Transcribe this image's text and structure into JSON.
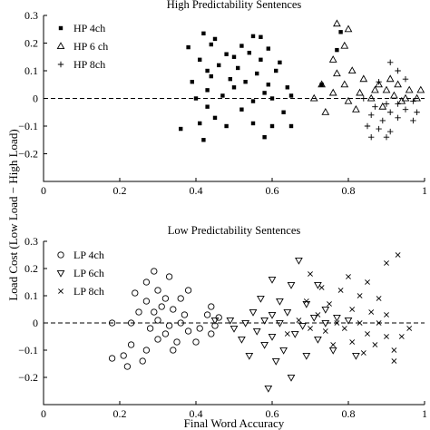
{
  "figure": {
    "ylabel": "Load Cost (Low Load − High Load)",
    "xlabel": "Final Word Accuracy"
  },
  "chart_data": [
    {
      "type": "scatter",
      "title": "High Predictability Sentences",
      "xlabel": "",
      "ylabel": "Load Cost (Low Load − High Load)",
      "xlim": [
        0,
        1
      ],
      "ylim": [
        -0.3,
        0.3
      ],
      "xticks": [
        "0",
        "0.2",
        "0.4",
        "0.6",
        "0.8",
        "1"
      ],
      "yticks": [
        "−0.2",
        "−0.1",
        "0",
        "0.1",
        "0.2",
        "0.3"
      ],
      "ytick_values": [
        -0.2,
        -0.1,
        0,
        0.1,
        0.2,
        0.3
      ],
      "xtick_values": [
        0,
        0.2,
        0.4,
        0.6,
        0.8,
        1
      ],
      "reference_line": {
        "y": 0,
        "style": "dashed"
      },
      "legend_position": "top-left",
      "series": [
        {
          "name": "HP 4ch",
          "marker": "filled-square",
          "points": [
            [
              0.42,
              0.235
            ],
            [
              0.45,
              0.215
            ],
            [
              0.55,
              0.225
            ],
            [
              0.57,
              0.222
            ],
            [
              0.38,
              0.185
            ],
            [
              0.44,
              0.195
            ],
            [
              0.52,
              0.19
            ],
            [
              0.59,
              0.18
            ],
            [
              0.48,
              0.16
            ],
            [
              0.54,
              0.165
            ],
            [
              0.41,
              0.14
            ],
            [
              0.5,
              0.15
            ],
            [
              0.57,
              0.14
            ],
            [
              0.46,
              0.12
            ],
            [
              0.62,
              0.13
            ],
            [
              0.43,
              0.1
            ],
            [
              0.51,
              0.11
            ],
            [
              0.56,
              0.09
            ],
            [
              0.61,
              0.1
            ],
            [
              0.39,
              0.06
            ],
            [
              0.44,
              0.08
            ],
            [
              0.49,
              0.07
            ],
            [
              0.53,
              0.06
            ],
            [
              0.59,
              0.05
            ],
            [
              0.64,
              0.04
            ],
            [
              0.43,
              0.03
            ],
            [
              0.5,
              0.04
            ],
            [
              0.58,
              0.02
            ],
            [
              0.65,
              0.01
            ],
            [
              0.4,
              0.0
            ],
            [
              0.47,
              0.01
            ],
            [
              0.55,
              -0.01
            ],
            [
              0.6,
              0.0
            ],
            [
              0.43,
              -0.03
            ],
            [
              0.52,
              -0.04
            ],
            [
              0.63,
              -0.05
            ],
            [
              0.45,
              -0.07
            ],
            [
              0.55,
              -0.09
            ],
            [
              0.41,
              -0.09
            ],
            [
              0.48,
              -0.1
            ],
            [
              0.6,
              -0.1
            ],
            [
              0.65,
              -0.1
            ],
            [
              0.36,
              -0.11
            ],
            [
              0.58,
              -0.14
            ],
            [
              0.42,
              -0.15
            ],
            [
              0.73,
              0.05
            ],
            [
              0.78,
              0.24
            ],
            [
              0.77,
              0.175
            ]
          ]
        },
        {
          "name": "HP 6 ch",
          "marker": "open-triangle-up",
          "points": [
            [
              0.77,
              0.27
            ],
            [
              0.8,
              0.25
            ],
            [
              0.79,
              0.19
            ],
            [
              0.76,
              0.14
            ],
            [
              0.81,
              0.1
            ],
            [
              0.77,
              0.09
            ],
            [
              0.73,
              0.05
            ],
            [
              0.79,
              0.05
            ],
            [
              0.84,
              0.07
            ],
            [
              0.88,
              0.05
            ],
            [
              0.91,
              0.07
            ],
            [
              0.76,
              0.02
            ],
            [
              0.83,
              0.02
            ],
            [
              0.87,
              0.03
            ],
            [
              0.9,
              0.03
            ],
            [
              0.93,
              0.05
            ],
            [
              0.96,
              0.03
            ],
            [
              0.99,
              0.03
            ],
            [
              0.71,
              0.0
            ],
            [
              0.8,
              -0.01
            ],
            [
              0.86,
              0.0
            ],
            [
              0.92,
              0.01
            ],
            [
              0.95,
              0.0
            ],
            [
              0.98,
              0.0
            ],
            [
              0.74,
              -0.05
            ],
            [
              0.82,
              -0.04
            ],
            [
              0.89,
              -0.03
            ],
            [
              0.94,
              -0.01
            ]
          ]
        },
        {
          "name": "HP 8ch",
          "marker": "plus",
          "points": [
            [
              0.91,
              0.13
            ],
            [
              0.93,
              0.1
            ],
            [
              0.95,
              0.07
            ],
            [
              0.88,
              0.06
            ],
            [
              0.84,
              0.0
            ],
            [
              0.9,
              -0.02
            ],
            [
              0.93,
              -0.02
            ],
            [
              0.97,
              -0.01
            ],
            [
              0.87,
              -0.03
            ],
            [
              0.91,
              -0.05
            ],
            [
              0.95,
              -0.04
            ],
            [
              0.98,
              -0.05
            ],
            [
              0.86,
              -0.06
            ],
            [
              0.89,
              -0.08
            ],
            [
              0.93,
              -0.07
            ],
            [
              0.97,
              -0.08
            ],
            [
              0.88,
              -0.11
            ],
            [
              0.91,
              -0.12
            ],
            [
              0.9,
              -0.14
            ],
            [
              0.86,
              -0.14
            ],
            [
              0.85,
              -0.1
            ]
          ]
        }
      ]
    },
    {
      "type": "scatter",
      "title": "Low Predictability Sentences",
      "xlabel": "Final Word Accuracy",
      "ylabel": "Load Cost (Low Load − High Load)",
      "xlim": [
        0,
        1
      ],
      "ylim": [
        -0.3,
        0.3
      ],
      "xticks": [
        "0",
        "0.2",
        "0.4",
        "0.6",
        "0.8",
        "1"
      ],
      "yticks": [
        "−0.2",
        "−0.1",
        "0",
        "0.1",
        "0.2",
        "0.3"
      ],
      "ytick_values": [
        -0.2,
        -0.1,
        0,
        0.1,
        0.2,
        0.3
      ],
      "xtick_values": [
        0,
        0.2,
        0.4,
        0.6,
        0.8,
        1
      ],
      "reference_line": {
        "y": 0,
        "style": "dashed"
      },
      "legend_position": "top-left",
      "series": [
        {
          "name": "LP 4ch",
          "marker": "open-circle",
          "points": [
            [
              0.29,
              0.19
            ],
            [
              0.33,
              0.17
            ],
            [
              0.27,
              0.15
            ],
            [
              0.38,
              0.12
            ],
            [
              0.24,
              0.11
            ],
            [
              0.3,
              0.12
            ],
            [
              0.32,
              0.09
            ],
            [
              0.36,
              0.09
            ],
            [
              0.27,
              0.08
            ],
            [
              0.31,
              0.06
            ],
            [
              0.34,
              0.05
            ],
            [
              0.25,
              0.04
            ],
            [
              0.29,
              0.04
            ],
            [
              0.37,
              0.03
            ],
            [
              0.44,
              0.06
            ],
            [
              0.43,
              0.03
            ],
            [
              0.18,
              0.0
            ],
            [
              0.23,
              0.0
            ],
            [
              0.3,
              0.01
            ],
            [
              0.33,
              -0.01
            ],
            [
              0.36,
              0.0
            ],
            [
              0.28,
              -0.02
            ],
            [
              0.32,
              -0.04
            ],
            [
              0.38,
              -0.03
            ],
            [
              0.41,
              -0.02
            ],
            [
              0.45,
              -0.01
            ],
            [
              0.3,
              -0.06
            ],
            [
              0.35,
              -0.07
            ],
            [
              0.23,
              -0.08
            ],
            [
              0.27,
              -0.1
            ],
            [
              0.21,
              -0.12
            ],
            [
              0.18,
              -0.13
            ],
            [
              0.26,
              -0.14
            ],
            [
              0.22,
              -0.16
            ],
            [
              0.34,
              -0.1
            ],
            [
              0.4,
              -0.07
            ],
            [
              0.44,
              -0.04
            ],
            [
              0.46,
              0.02
            ]
          ]
        },
        {
          "name": "LP 6ch",
          "marker": "open-triangle-down",
          "points": [
            [
              0.67,
              0.23
            ],
            [
              0.6,
              0.16
            ],
            [
              0.65,
              0.14
            ],
            [
              0.72,
              0.14
            ],
            [
              0.57,
              0.09
            ],
            [
              0.62,
              0.08
            ],
            [
              0.69,
              0.07
            ],
            [
              0.74,
              0.05
            ],
            [
              0.55,
              0.04
            ],
            [
              0.6,
              0.03
            ],
            [
              0.64,
              0.04
            ],
            [
              0.71,
              0.02
            ],
            [
              0.77,
              0.02
            ],
            [
              0.49,
              0.01
            ],
            [
              0.53,
              0.0
            ],
            [
              0.58,
              0.01
            ],
            [
              0.62,
              0.0
            ],
            [
              0.68,
              -0.01
            ],
            [
              0.74,
              0.0
            ],
            [
              0.8,
              0.01
            ],
            [
              0.45,
              0.01
            ],
            [
              0.5,
              -0.02
            ],
            [
              0.56,
              -0.03
            ],
            [
              0.6,
              -0.05
            ],
            [
              0.66,
              -0.04
            ],
            [
              0.72,
              -0.06
            ],
            [
              0.58,
              -0.08
            ],
            [
              0.63,
              -0.1
            ],
            [
              0.69,
              -0.12
            ],
            [
              0.54,
              -0.12
            ],
            [
              0.76,
              -0.1
            ],
            [
              0.61,
              -0.14
            ],
            [
              0.65,
              -0.2
            ],
            [
              0.59,
              -0.24
            ],
            [
              0.82,
              -0.12
            ],
            [
              0.52,
              -0.06
            ]
          ]
        },
        {
          "name": "LP 8ch",
          "marker": "x",
          "points": [
            [
              0.93,
              0.25
            ],
            [
              0.9,
              0.22
            ],
            [
              0.7,
              0.18
            ],
            [
              0.8,
              0.17
            ],
            [
              0.85,
              0.15
            ],
            [
              0.73,
              0.13
            ],
            [
              0.78,
              0.12
            ],
            [
              0.83,
              0.1
            ],
            [
              0.88,
              0.09
            ],
            [
              0.69,
              0.08
            ],
            [
              0.75,
              0.07
            ],
            [
              0.81,
              0.05
            ],
            [
              0.86,
              0.04
            ],
            [
              0.9,
              0.03
            ],
            [
              0.72,
              0.03
            ],
            [
              0.67,
              0.01
            ],
            [
              0.77,
              0.0
            ],
            [
              0.83,
              0.0
            ],
            [
              0.88,
              0.0
            ],
            [
              0.7,
              -0.02
            ],
            [
              0.74,
              -0.03
            ],
            [
              0.79,
              -0.02
            ],
            [
              0.85,
              -0.04
            ],
            [
              0.9,
              -0.05
            ],
            [
              0.94,
              -0.05
            ],
            [
              0.81,
              -0.07
            ],
            [
              0.87,
              -0.08
            ],
            [
              0.76,
              -0.08
            ],
            [
              0.92,
              -0.1
            ],
            [
              0.84,
              -0.11
            ],
            [
              0.64,
              -0.04
            ],
            [
              0.96,
              -0.02
            ],
            [
              0.92,
              -0.14
            ]
          ]
        }
      ]
    }
  ]
}
